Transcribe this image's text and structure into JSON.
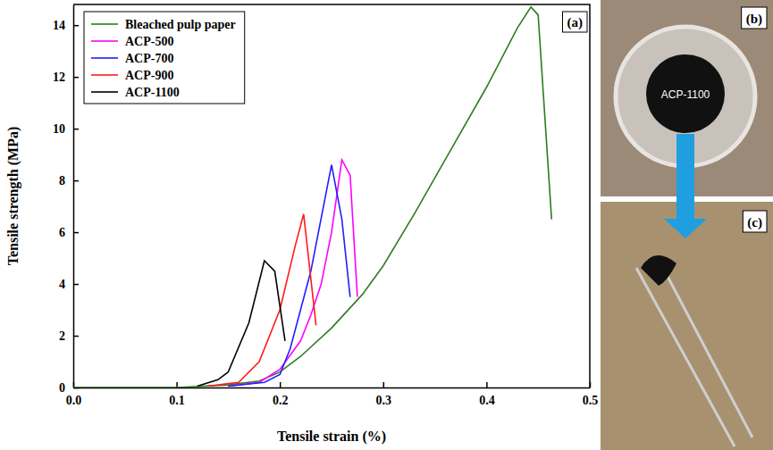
{
  "chart_data": {
    "type": "line",
    "x_label": "Tensile strain (%)",
    "y_label": "Tensile strength (MPa)",
    "annotations": [
      "(a)"
    ],
    "xlim": [
      0,
      0.5
    ],
    "xticks": [
      {
        "value": 0,
        "label": "0.0"
      },
      0.1,
      0.2,
      0.3,
      0.4,
      0.5
    ],
    "ylim": [
      0,
      14.8
    ],
    "yticks": [
      0,
      2,
      4,
      6,
      8,
      10,
      12,
      14
    ],
    "legend": "top-left",
    "series": [
      {
        "name": "Bleached pulp paper",
        "color": "#2e7d1f",
        "x": [
          0,
          0.1,
          0.15,
          0.18,
          0.2,
          0.22,
          0.25,
          0.28,
          0.3,
          0.33,
          0.36,
          0.4,
          0.43,
          0.443,
          0.45,
          0.463
        ],
        "values": [
          0,
          0,
          0.1,
          0.25,
          0.6,
          1.2,
          2.3,
          3.6,
          4.7,
          6.7,
          8.8,
          11.6,
          13.9,
          14.7,
          14.4,
          6.5
        ]
      },
      {
        "name": "ACP-500",
        "color": "#ff00ff",
        "x": [
          0.15,
          0.18,
          0.2,
          0.22,
          0.23,
          0.24,
          0.25,
          0.26,
          0.268,
          0.275
        ],
        "values": [
          0.05,
          0.2,
          0.7,
          1.8,
          2.8,
          4.0,
          6.0,
          8.8,
          8.2,
          3.5
        ]
      },
      {
        "name": "ACP-700",
        "color": "#1f1fff",
        "x": [
          0.15,
          0.185,
          0.2,
          0.21,
          0.23,
          0.25,
          0.26,
          0.268
        ],
        "values": [
          0.05,
          0.2,
          0.5,
          1.5,
          4.5,
          8.6,
          6.5,
          3.5
        ]
      },
      {
        "name": "ACP-900",
        "color": "#ff1a1a",
        "x": [
          0.13,
          0.16,
          0.18,
          0.2,
          0.215,
          0.223,
          0.235
        ],
        "values": [
          0.05,
          0.2,
          1.0,
          3.0,
          5.5,
          6.7,
          2.4
        ]
      },
      {
        "name": "ACP-1100",
        "color": "#000000",
        "x": [
          0.12,
          0.14,
          0.15,
          0.17,
          0.185,
          0.195,
          0.205
        ],
        "values": [
          0.05,
          0.3,
          0.6,
          2.5,
          4.9,
          4.5,
          1.8
        ]
      }
    ]
  },
  "photos": [
    {
      "label": "(b)",
      "text": "ACP-1100"
    },
    {
      "label": "(c)"
    }
  ]
}
